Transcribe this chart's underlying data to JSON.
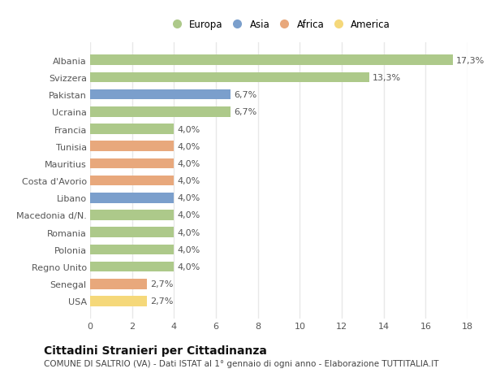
{
  "countries": [
    "Albania",
    "Svizzera",
    "Pakistan",
    "Ucraina",
    "Francia",
    "Tunisia",
    "Mauritius",
    "Costa d'Avorio",
    "Libano",
    "Macedonia d/N.",
    "Romania",
    "Polonia",
    "Regno Unito",
    "Senegal",
    "USA"
  ],
  "values": [
    17.3,
    13.3,
    6.7,
    6.7,
    4.0,
    4.0,
    4.0,
    4.0,
    4.0,
    4.0,
    4.0,
    4.0,
    4.0,
    2.7,
    2.7
  ],
  "labels": [
    "17,3%",
    "13,3%",
    "6,7%",
    "6,7%",
    "4,0%",
    "4,0%",
    "4,0%",
    "4,0%",
    "4,0%",
    "4,0%",
    "4,0%",
    "4,0%",
    "4,0%",
    "2,7%",
    "2,7%"
  ],
  "continents": [
    "Europa",
    "Europa",
    "Asia",
    "Europa",
    "Europa",
    "Africa",
    "Africa",
    "Africa",
    "Asia",
    "Europa",
    "Europa",
    "Europa",
    "Europa",
    "Africa",
    "America"
  ],
  "colors": {
    "Europa": "#adc98a",
    "Asia": "#7b9fcc",
    "Africa": "#e8a87c",
    "America": "#f5d87a"
  },
  "legend_order": [
    "Europa",
    "Asia",
    "Africa",
    "America"
  ],
  "title": "Cittadini Stranieri per Cittadinanza",
  "subtitle": "COMUNE DI SALTRIO (VA) - Dati ISTAT al 1° gennaio di ogni anno - Elaborazione TUTTITALIA.IT",
  "xlim": [
    0,
    18
  ],
  "xticks": [
    0,
    2,
    4,
    6,
    8,
    10,
    12,
    14,
    16,
    18
  ],
  "plot_bg_color": "#ffffff",
  "fig_bg_color": "#ffffff",
  "grid_color": "#e8e8e8",
  "text_color": "#555555",
  "title_fontsize": 10,
  "subtitle_fontsize": 7.5,
  "tick_fontsize": 8,
  "label_fontsize": 8
}
